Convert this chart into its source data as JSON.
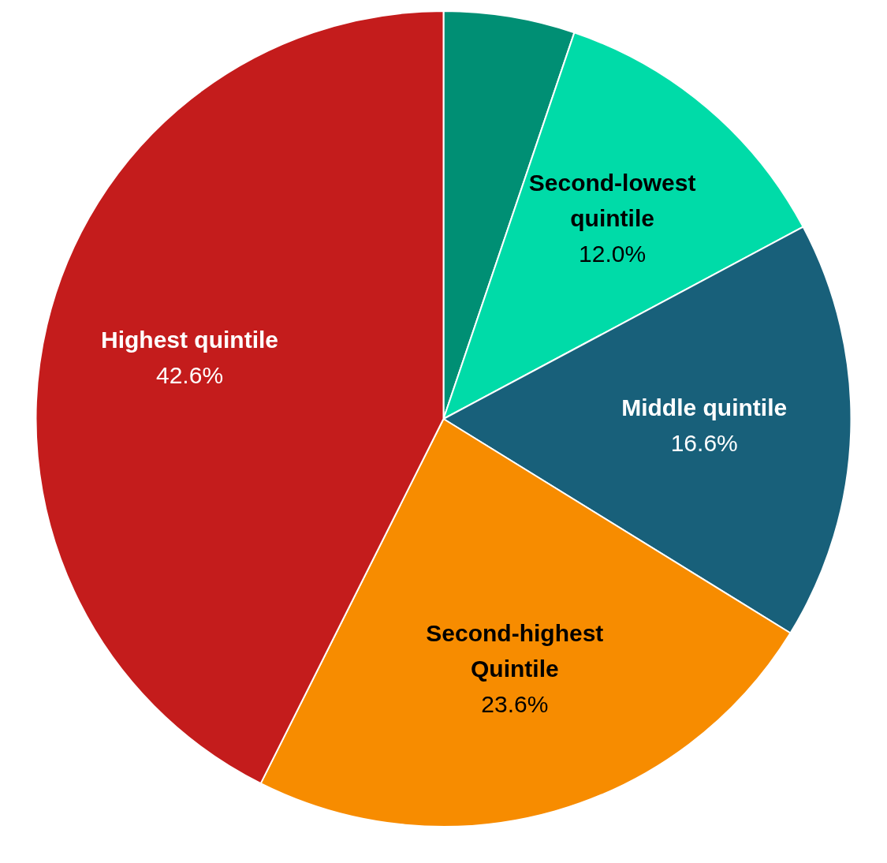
{
  "chart_data": {
    "type": "pie",
    "categories": [
      null,
      "Second-lowest quintile",
      "Middle quintile",
      "Second-highest Quintile",
      "Highest quintile"
    ],
    "values": [
      5.2,
      12.0,
      16.6,
      23.6,
      42.6
    ],
    "value_labels": [
      null,
      "12.0%",
      "16.6%",
      "23.6%",
      "42.6%"
    ],
    "colors": [
      "#008f74",
      "#00dba8",
      "#18607a",
      "#f78c00",
      "#c41c1c"
    ],
    "legend": false
  }
}
